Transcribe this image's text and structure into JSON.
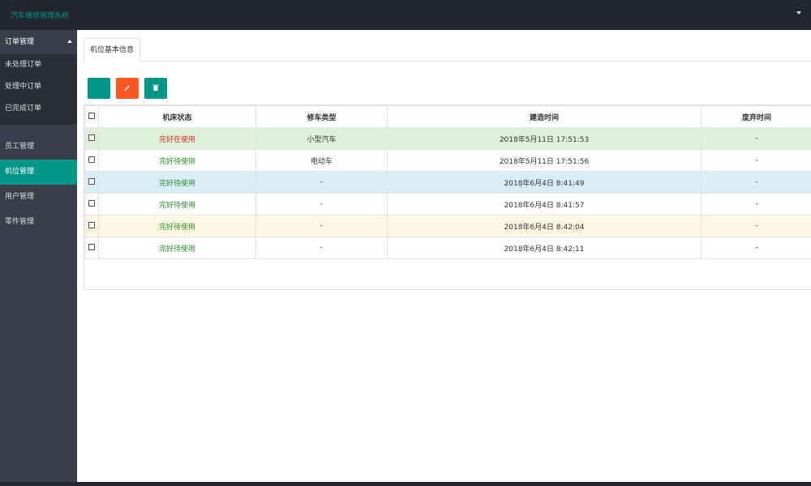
{
  "header": {
    "title": "汽车维修管理系统"
  },
  "sidebar": {
    "group": {
      "label": "订单管理",
      "items": [
        "未处理订单",
        "处理中订单",
        "已完成订单"
      ]
    },
    "items": [
      "员工管理",
      "机位管理",
      "用户管理",
      "零件管理"
    ],
    "active": "机位管理"
  },
  "tab": "机位基本信息",
  "table": {
    "columns": [
      "机床状态",
      "修车类型",
      "建造时间",
      "废弃时间"
    ],
    "rows": [
      [
        "完好在使用",
        "小型汽车",
        "2018年5月11日 17:51:53",
        "-"
      ],
      [
        "完好待使用",
        "电动车",
        "2018年5月11日 17:51:56",
        "-"
      ],
      [
        "完好待使用",
        "-",
        "2018年6月4日 8:41:49",
        "-"
      ],
      [
        "完好待使用",
        "-",
        "2018年6月4日 8:41:57",
        "-"
      ],
      [
        "完好待使用",
        "-",
        "2018年6月4日 8:42:04",
        "-"
      ],
      [
        "完好待使用",
        "-",
        "2018年6月4日 8:42:11",
        "-"
      ]
    ]
  }
}
